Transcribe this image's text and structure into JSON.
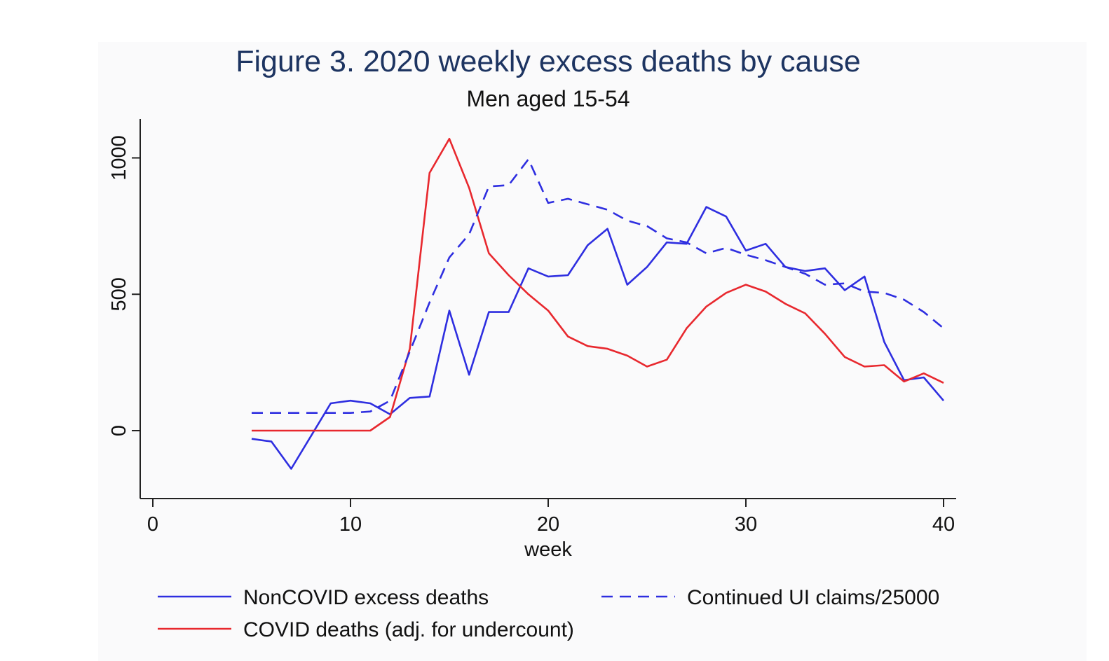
{
  "chart_data": {
    "type": "line",
    "title": "Figure 3.  2020 weekly excess deaths by cause",
    "subtitle": "Men aged 15-54",
    "xlabel": "week",
    "ylabel": "",
    "xlim": [
      0,
      40
    ],
    "ylim": [
      -250,
      1150
    ],
    "x_ticks": [
      0,
      10,
      20,
      30,
      40
    ],
    "y_ticks": [
      0,
      500,
      1000
    ],
    "grid": false,
    "legend_position": "bottom",
    "series": [
      {
        "name": "NonCOVID excess deaths",
        "color": "#2e2ee0",
        "dash": "solid",
        "x": [
          5,
          6,
          7,
          8,
          9,
          10,
          11,
          12,
          13,
          14,
          15,
          16,
          17,
          18,
          19,
          20,
          21,
          22,
          23,
          24,
          25,
          26,
          27,
          28,
          29,
          30,
          31,
          32,
          33,
          34,
          35,
          36,
          37,
          38,
          39,
          40
        ],
        "y": [
          -30,
          -40,
          -140,
          -20,
          100,
          110,
          100,
          60,
          120,
          125,
          440,
          205,
          435,
          435,
          595,
          565,
          570,
          680,
          740,
          535,
          600,
          690,
          685,
          820,
          785,
          660,
          685,
          600,
          585,
          595,
          515,
          565,
          325,
          185,
          195,
          110
        ]
      },
      {
        "name": "COVID deaths (adj. for undercount)",
        "color": "#e8282e",
        "dash": "solid",
        "x": [
          5,
          6,
          7,
          8,
          9,
          10,
          11,
          12,
          13,
          14,
          15,
          16,
          17,
          18,
          19,
          20,
          21,
          22,
          23,
          24,
          25,
          26,
          27,
          28,
          29,
          30,
          31,
          32,
          33,
          34,
          35,
          36,
          37,
          38,
          39,
          40
        ],
        "y": [
          0,
          0,
          0,
          0,
          0,
          0,
          0,
          50,
          300,
          945,
          1070,
          890,
          650,
          570,
          500,
          440,
          345,
          310,
          300,
          275,
          235,
          260,
          375,
          455,
          505,
          535,
          510,
          465,
          430,
          355,
          270,
          235,
          240,
          180,
          210,
          175
        ]
      },
      {
        "name": "Continued UI claims/25000",
        "color": "#2e2ee0",
        "dash": "dashed",
        "x": [
          5,
          6,
          7,
          8,
          9,
          10,
          11,
          12,
          13,
          14,
          15,
          16,
          17,
          18,
          19,
          20,
          21,
          22,
          23,
          24,
          25,
          26,
          27,
          28,
          29,
          30,
          31,
          32,
          33,
          34,
          35,
          36,
          37,
          38,
          39,
          40
        ],
        "y": [
          65,
          65,
          65,
          65,
          65,
          65,
          70,
          110,
          290,
          470,
          635,
          720,
          895,
          900,
          995,
          835,
          850,
          830,
          810,
          770,
          750,
          705,
          690,
          650,
          670,
          645,
          625,
          600,
          575,
          535,
          540,
          510,
          505,
          480,
          435,
          375
        ]
      }
    ]
  }
}
